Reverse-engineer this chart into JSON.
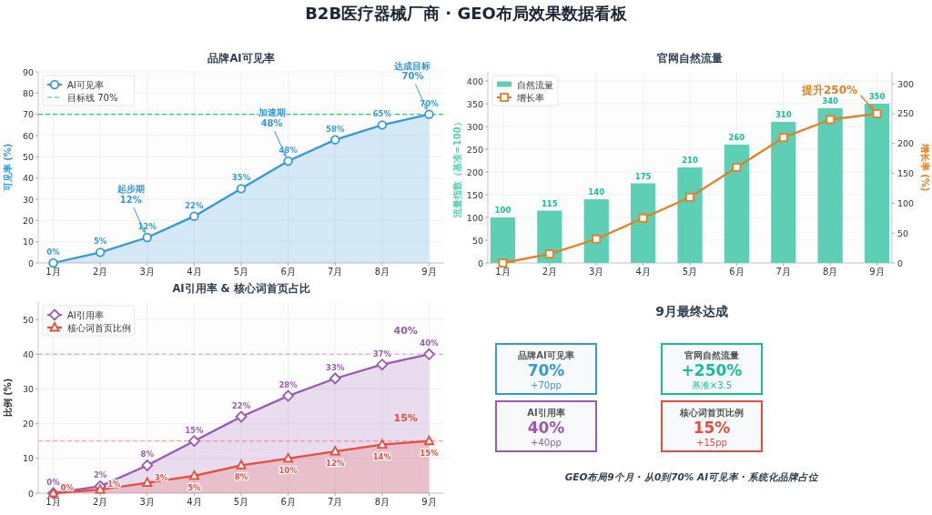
{
  "chart_data": [
    {
      "type": "area",
      "title": "品牌AI可见率",
      "ylabel": "可见率 (%)",
      "categories": [
        "1月",
        "2月",
        "3月",
        "4月",
        "5月",
        "6月",
        "7月",
        "8月",
        "9月"
      ],
      "series": [
        {
          "name": "AI可见率",
          "color": "#3498db",
          "marker": "circle",
          "values": [
            0,
            5,
            12,
            22,
            35,
            48,
            58,
            65,
            70
          ],
          "value_labels": [
            "0%",
            "5%",
            "12%",
            "22%",
            "35%",
            "48%",
            "58%",
            "65%",
            "70%"
          ]
        }
      ],
      "ylim": [
        0,
        90
      ],
      "yticks": [
        0,
        10,
        20,
        30,
        40,
        50,
        60,
        70,
        80,
        90
      ],
      "grid": true,
      "legend": "top left",
      "ref_lines": [
        {
          "axis": "y",
          "value": 70,
          "label": "目标线 70%",
          "color": "#2ecc71",
          "line_style": "dashed"
        }
      ],
      "annotations": [
        "B2B医疗器械厂商 · GEO布局效果数据看板",
        {
          "text": "起步期\n12%",
          "x": "3月",
          "y": 12
        },
        {
          "text": "加速期\n48%",
          "x": "6月",
          "y": 48
        },
        {
          "text": "达成目标\n70%",
          "x": "9月",
          "y": 70
        }
      ]
    },
    {
      "type": "bar",
      "title": "官网自然流量",
      "ylabel": "流量指数（基准=100）",
      "y2label": "增长率 (%)",
      "categories": [
        "1月",
        "2月",
        "3月",
        "4月",
        "5月",
        "6月",
        "7月",
        "8月",
        "9月"
      ],
      "series": [
        {
          "name": "自然流量",
          "color": "#5ccfb5",
          "values": [
            100,
            115,
            140,
            175,
            210,
            260,
            310,
            340,
            350
          ],
          "value_labels": [
            "100",
            "115",
            "140",
            "175",
            "210",
            "260",
            "310",
            "340",
            "350"
          ]
        },
        {
          "name": "增长率",
          "type": "line",
          "axis": "y2",
          "color": "#e67e22",
          "marker": "square",
          "values": [
            0,
            15,
            40,
            75,
            110,
            160,
            210,
            240,
            250
          ]
        }
      ],
      "ylim": [
        0,
        420
      ],
      "yticks": [
        0,
        50,
        100,
        150,
        200,
        250,
        300,
        350,
        400
      ],
      "y2lim": [
        0,
        320
      ],
      "y2ticks": [
        0,
        50,
        100,
        150,
        200,
        250,
        300
      ],
      "grid": true,
      "legend": "top left",
      "annotations": [
        "提升250%"
      ]
    },
    {
      "type": "area",
      "title": "AI引用率 & 核心词首页占比",
      "ylabel": "比例 (%)",
      "categories": [
        "1月",
        "2月",
        "3月",
        "4月",
        "5月",
        "6月",
        "7月",
        "8月",
        "9月"
      ],
      "series": [
        {
          "name": "AI引用率",
          "color": "#9b59b6",
          "marker": "diamond",
          "values": [
            0,
            2,
            8,
            15,
            22,
            28,
            33,
            37,
            40
          ],
          "value_labels": [
            "0%",
            "2%",
            "8%",
            "15%",
            "22%",
            "28%",
            "33%",
            "37%",
            "40%"
          ]
        },
        {
          "name": "核心词首页比例",
          "color": "#e74c3c",
          "marker": "triangle",
          "values": [
            0,
            1,
            3,
            5,
            8,
            10,
            12,
            14,
            15
          ],
          "value_labels": [
            "0%",
            "1%",
            "3%",
            "5%",
            "8%",
            "10%",
            "12%",
            "14%",
            "15%"
          ]
        }
      ],
      "ylim": [
        0,
        55
      ],
      "yticks": [
        0,
        10,
        20,
        30,
        40,
        50
      ],
      "grid": true,
      "legend": "top left",
      "ref_lines": [
        {
          "axis": "y",
          "value": 40,
          "color": "#c39bd3",
          "line_style": "dashed"
        },
        {
          "axis": "y",
          "value": 15,
          "color": "#f1948a",
          "line_style": "dashed"
        }
      ],
      "annotations": [
        "40%",
        "15%"
      ]
    },
    {
      "type": "other",
      "title": "9月最终达成",
      "colors": [
        "#3498db",
        "#1abc9c",
        "#9b59b6",
        "#e74c3c"
      ],
      "annotations": [
        "品牌AI可见率",
        "70%",
        "+70pp",
        "官网自然流量",
        "+250%",
        "基准×3.5",
        "AI引用率",
        "40%",
        "+40pp",
        "核心词首页比例",
        "15%",
        "+15pp",
        "GEO布局9个月 · 从0到70% AI可见率 · 系统化品牌占位"
      ]
    }
  ]
}
